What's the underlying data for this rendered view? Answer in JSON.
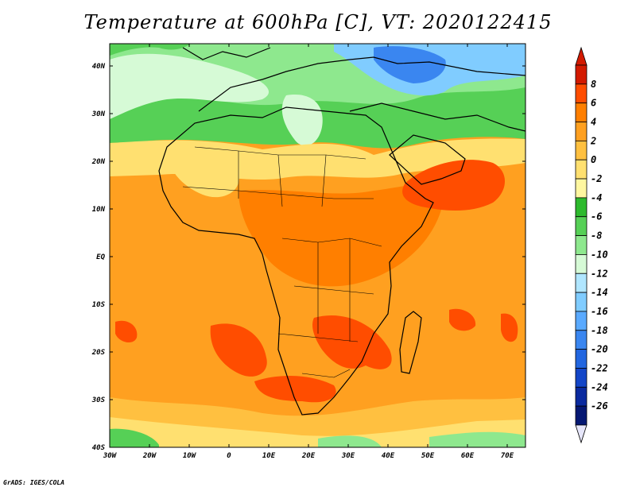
{
  "title": "Temperature at 600hPa [C], VT: 2020122415",
  "credit": "GrADS: IGES/COLA",
  "lon_ticks": [
    "30W",
    "20W",
    "10W",
    "0",
    "10E",
    "20E",
    "30E",
    "40E",
    "50E",
    "60E",
    "70E"
  ],
  "lat_ticks": [
    "40N",
    "30N",
    "20N",
    "10N",
    "EQ",
    "10S",
    "20S",
    "30S",
    "40S"
  ],
  "colorbar": {
    "labels": [
      "8",
      "6",
      "4",
      "2",
      "0",
      "-2",
      "-4",
      "-6",
      "-8",
      "-10",
      "-12",
      "-14",
      "-16",
      "-18",
      "-20",
      "-22",
      "-24",
      "-26"
    ],
    "colors": [
      "#d31a00",
      "#ff4d00",
      "#ff7f00",
      "#ffa020",
      "#ffc040",
      "#ffe070",
      "#fff7a0",
      "#2dba2d",
      "#56d056",
      "#8ee88e",
      "#d6fad6",
      "#b0e6ff",
      "#80ccff",
      "#5aaaff",
      "#3a86f0",
      "#2266e0",
      "#1346c8",
      "#0a2a9f",
      "#051873"
    ]
  },
  "field": {
    "regions": [
      {
        "name": "north-cold-band",
        "color": "#56d056"
      },
      {
        "name": "north-light-green",
        "color": "#8ee88e"
      },
      {
        "name": "north-pale",
        "color": "#d6fad6"
      },
      {
        "name": "europe-blue",
        "color": "#80ccff"
      },
      {
        "name": "europe-dark-blue",
        "color": "#3a86f0"
      },
      {
        "name": "subtropic-yellow",
        "color": "#ffe070"
      },
      {
        "name": "tropics-orange",
        "color": "#ffa020"
      },
      {
        "name": "tropics-darker",
        "color": "#ff7f00"
      },
      {
        "name": "warm-red",
        "color": "#ff4d00"
      },
      {
        "name": "south-yellow",
        "color": "#ffc040"
      },
      {
        "name": "south-green",
        "color": "#56d056"
      }
    ],
    "coastline_color": "#000000"
  }
}
